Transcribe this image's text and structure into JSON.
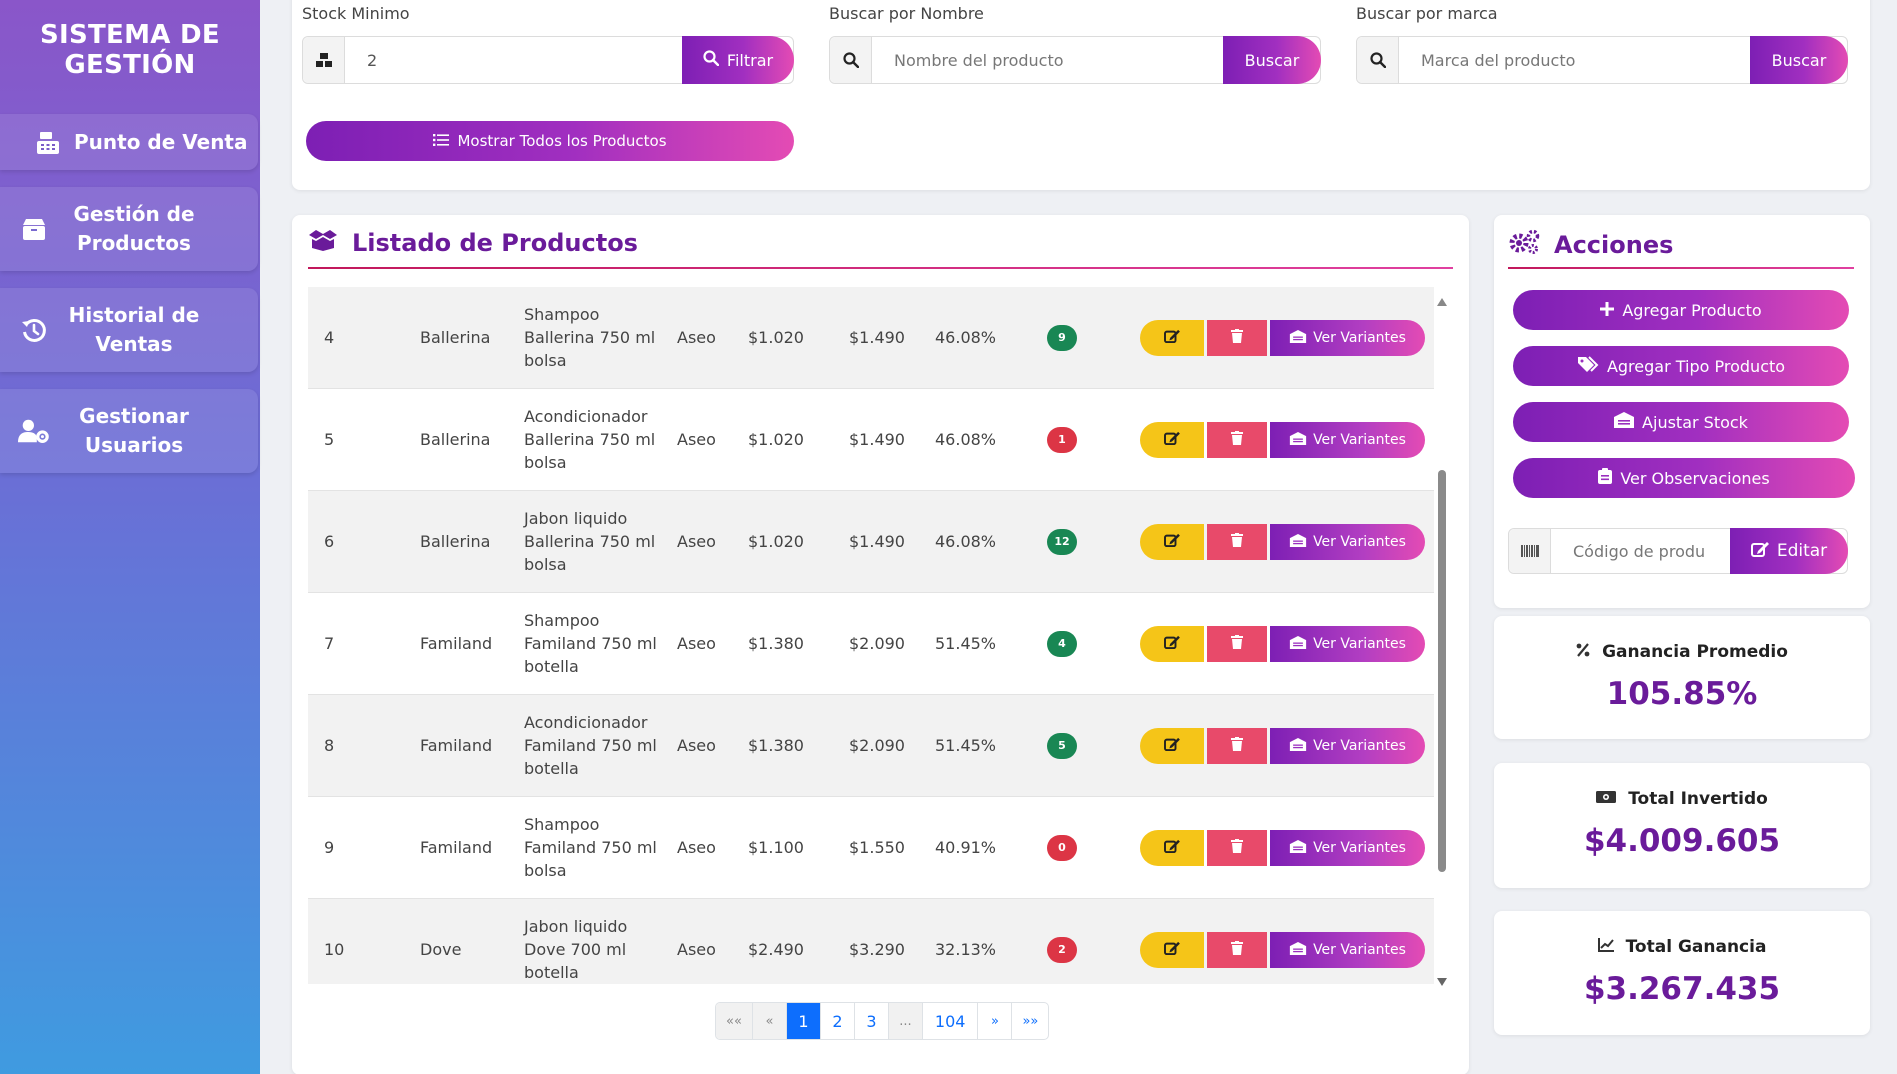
{
  "sidebar": {
    "brand": "SISTEMA DE GESTIÓN",
    "items": [
      {
        "label": "Punto de Venta",
        "icon": "cash-register-icon"
      },
      {
        "label": "Gestión de Productos",
        "icon": "box-icon"
      },
      {
        "label": "Historial de Ventas",
        "icon": "history-icon"
      },
      {
        "label": "Gestionar Usuarios",
        "icon": "user-gear-icon"
      }
    ]
  },
  "filters": {
    "stock": {
      "label": "Stock Minimo",
      "value": "2",
      "button": "Filtrar"
    },
    "name": {
      "label": "Buscar por Nombre",
      "placeholder": "Nombre del producto",
      "button": "Buscar"
    },
    "brand": {
      "label": "Buscar por marca",
      "placeholder": "Marca del producto",
      "button": "Buscar"
    },
    "show_all": "Mostrar Todos los Productos"
  },
  "products": {
    "title": "Listado de Productos",
    "variants_label": "Ver Variantes",
    "rows": [
      {
        "id": "4",
        "brand": "Ballerina",
        "name": "Shampoo Ballerina 750 ml bolsa",
        "category": "Aseo",
        "cost": "$1.020",
        "price": "$1.490",
        "margin": "46.08%",
        "stock": "9",
        "stock_status": "ok"
      },
      {
        "id": "5",
        "brand": "Ballerina",
        "name": "Acondicionador Ballerina 750 ml bolsa",
        "category": "Aseo",
        "cost": "$1.020",
        "price": "$1.490",
        "margin": "46.08%",
        "stock": "1",
        "stock_status": "low"
      },
      {
        "id": "6",
        "brand": "Ballerina",
        "name": "Jabon liquido Ballerina 750 ml bolsa",
        "category": "Aseo",
        "cost": "$1.020",
        "price": "$1.490",
        "margin": "46.08%",
        "stock": "12",
        "stock_status": "ok"
      },
      {
        "id": "7",
        "brand": "Familand",
        "name": "Shampoo Familand 750 ml botella",
        "category": "Aseo",
        "cost": "$1.380",
        "price": "$2.090",
        "margin": "51.45%",
        "stock": "4",
        "stock_status": "ok"
      },
      {
        "id": "8",
        "brand": "Familand",
        "name": "Acondicionador Familand 750 ml botella",
        "category": "Aseo",
        "cost": "$1.380",
        "price": "$2.090",
        "margin": "51.45%",
        "stock": "5",
        "stock_status": "ok"
      },
      {
        "id": "9",
        "brand": "Familand",
        "name": "Shampoo Familand 750 ml bolsa",
        "category": "Aseo",
        "cost": "$1.100",
        "price": "$1.550",
        "margin": "40.91%",
        "stock": "0",
        "stock_status": "low"
      },
      {
        "id": "10",
        "brand": "Dove",
        "name": "Jabon liquido Dove 700 ml botella",
        "category": "Aseo",
        "cost": "$2.490",
        "price": "$3.290",
        "margin": "32.13%",
        "stock": "2",
        "stock_status": "low"
      }
    ],
    "colors": {
      "ok": "#198754",
      "low": "#dc3545"
    }
  },
  "pagination": {
    "first": "««",
    "prev": "«",
    "pages": [
      "1",
      "2",
      "3"
    ],
    "current": "1",
    "ellipsis": "...",
    "last_page": "104",
    "next": "»",
    "last": "»»"
  },
  "actions": {
    "title": "Acciones",
    "add_product": "Agregar Producto",
    "add_type": "Agregar Tipo Producto",
    "adjust_stock": "Ajustar Stock",
    "observations": "Ver Observaciones",
    "code_placeholder": "Código de produ",
    "edit": "Editar"
  },
  "stats": [
    {
      "title": "Ganancia Promedio",
      "value": "105.85%",
      "icon": "percent-icon"
    },
    {
      "title": "Total Invertido",
      "value": "$4.009.605",
      "icon": "money-bill-icon"
    },
    {
      "title": "Total Ganancia",
      "value": "$3.267.435",
      "icon": "chart-line-icon"
    }
  ],
  "theme": {
    "accent": "#6a1b9a",
    "gradient_start": "#7d1fb4",
    "gradient_end": "#e44bb4",
    "warning": "#f5c518",
    "danger": "#e84a6a"
  }
}
